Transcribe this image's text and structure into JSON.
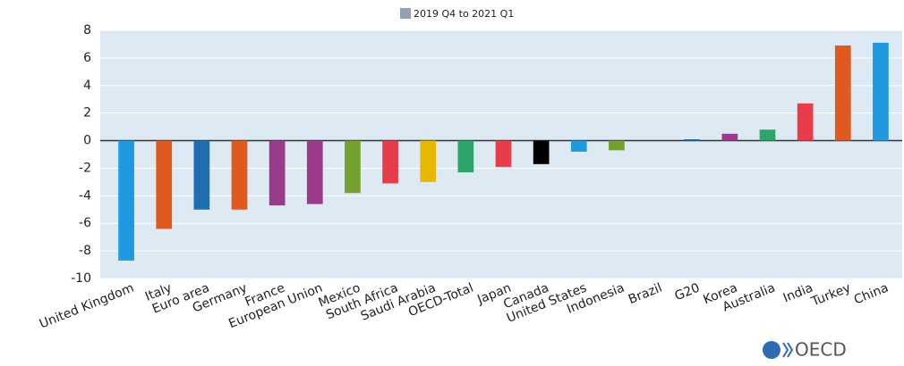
{
  "chart_data": {
    "type": "bar",
    "categories": [
      "United Kingdom",
      "Italy",
      "Euro area",
      "Germany",
      "France",
      "European Union",
      "Mexico",
      "South Africa",
      "Saudi Arabia",
      "OECD-Total",
      "Japan",
      "Canada",
      "United States",
      "Indonesia",
      "Brazil",
      "G20",
      "Korea",
      "Australia",
      "India",
      "Turkey",
      "China"
    ],
    "series": [
      {
        "name": "2019 Q4 to 2021 Q1",
        "color": "#8fa3b3",
        "values": [
          -8.7,
          -6.4,
          -5.0,
          -5.0,
          -4.7,
          -4.6,
          -3.8,
          -3.1,
          -3.0,
          -2.3,
          -1.9,
          -1.7,
          -0.8,
          -0.7,
          0.0,
          0.1,
          0.5,
          0.8,
          2.7,
          6.9,
          7.1
        ]
      }
    ],
    "bar_colors": [
      "#1f9ae0",
      "#e05a1f",
      "#1f6fb0",
      "#e05a1f",
      "#9b3a8a",
      "#9b3a8a",
      "#74a030",
      "#e83c4a",
      "#e8b800",
      "#2fa56e",
      "#e83c4a",
      "#000000",
      "#1f9ae0",
      "#74a030",
      "#e8b800",
      "#1f6fb0",
      "#9b3a8a",
      "#2fa56e",
      "#e83c4a",
      "#e05a1f",
      "#1f9ae0"
    ],
    "ylim": [
      -10,
      8
    ],
    "yticks": [
      -10,
      -8,
      -6,
      -4,
      -2,
      0,
      2,
      4,
      6,
      8
    ],
    "grid": true,
    "logo_text": "OECD"
  }
}
